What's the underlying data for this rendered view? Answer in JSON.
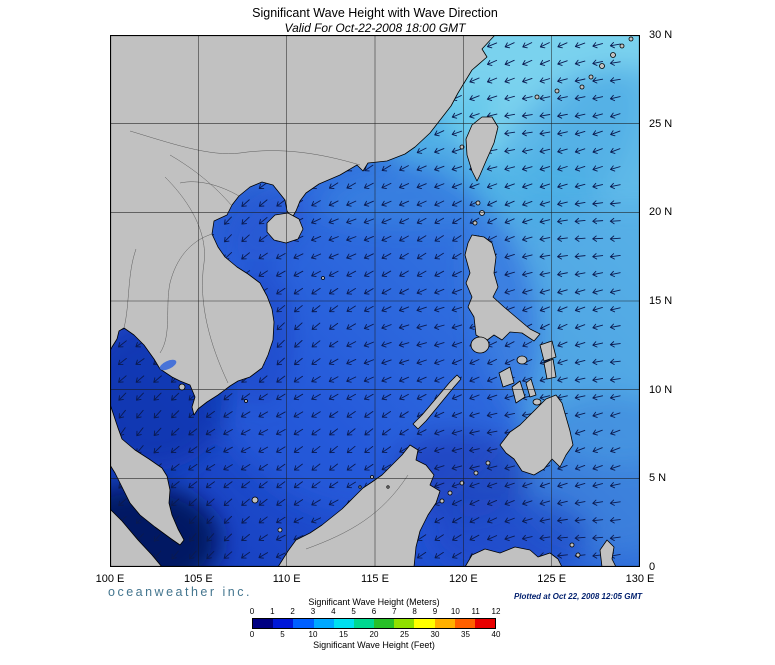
{
  "header": {
    "title": "Significant Wave Height with Wave Direction",
    "subtitle": "Valid For Oct-22-2008 18:00 GMT"
  },
  "axes": {
    "lon": [
      "100 E",
      "105 E",
      "110 E",
      "115 E",
      "120 E",
      "125 E",
      "130 E"
    ],
    "lat": [
      "30 N",
      "25 N",
      "20 N",
      "15 N",
      "10 N",
      "5 N",
      "0"
    ]
  },
  "colorbar": {
    "meters_title": "Significant Wave Height (Meters)",
    "feet_title": "Significant Wave Height (Feet)",
    "meters_ticks": [
      "0",
      "1",
      "2",
      "3",
      "4",
      "5",
      "6",
      "7",
      "8",
      "9",
      "10",
      "11",
      "12"
    ],
    "feet_ticks": [
      "0",
      "5",
      "10",
      "15",
      "20",
      "25",
      "30",
      "35",
      "40"
    ],
    "segment_colors": [
      "#000082",
      "#0018d8",
      "#0060ff",
      "#00a8ff",
      "#00e0f0",
      "#00d890",
      "#28c028",
      "#90e000",
      "#ffff00",
      "#ffb000",
      "#ff6000",
      "#e80000"
    ]
  },
  "footer": {
    "brand": "oceanweather inc.",
    "plotted": "Plotted at Oct 22, 2008 12:05 GMT"
  },
  "palette": {
    "land": "#c1c1c1",
    "coast": "#000000",
    "arrow": "#0a1a50",
    "grid": "#1a1a1a",
    "ocean_stops": [
      "#1238b8",
      "#2355d6",
      "#3f8ce0",
      "#6fd0f0"
    ],
    "ocean_offsets": [
      0,
      35,
      65,
      100
    ]
  },
  "chart_data": {
    "type": "heatmap",
    "title": "Significant Wave Height with Wave Direction",
    "valid_time": "Oct-22-2008 18:00 GMT",
    "x_ticks": [
      "100 E",
      "105 E",
      "110 E",
      "115 E",
      "120 E",
      "125 E",
      "130 E"
    ],
    "y_ticks": [
      "0",
      "5 N",
      "10 N",
      "15 N",
      "20 N",
      "25 N",
      "30 N"
    ],
    "colorbar_meters": [
      0,
      1,
      2,
      3,
      4,
      5,
      6,
      7,
      8,
      9,
      10,
      11,
      12
    ],
    "colorbar_feet": [
      0,
      5,
      10,
      15,
      20,
      25,
      30,
      35,
      40
    ],
    "legend_position": "bottom",
    "field_summary": "Wave heights ~0-1 m in Malacca Strait (dark navy), ~1-2 m Gulf of Thailand and sheltered seas, ~2-3 m central South China Sea (blue), ~3-4 m Luzon Strait and Pacific northeast of Taiwan (cyan); arrows indicate waves travelling generally west-southwest"
  }
}
